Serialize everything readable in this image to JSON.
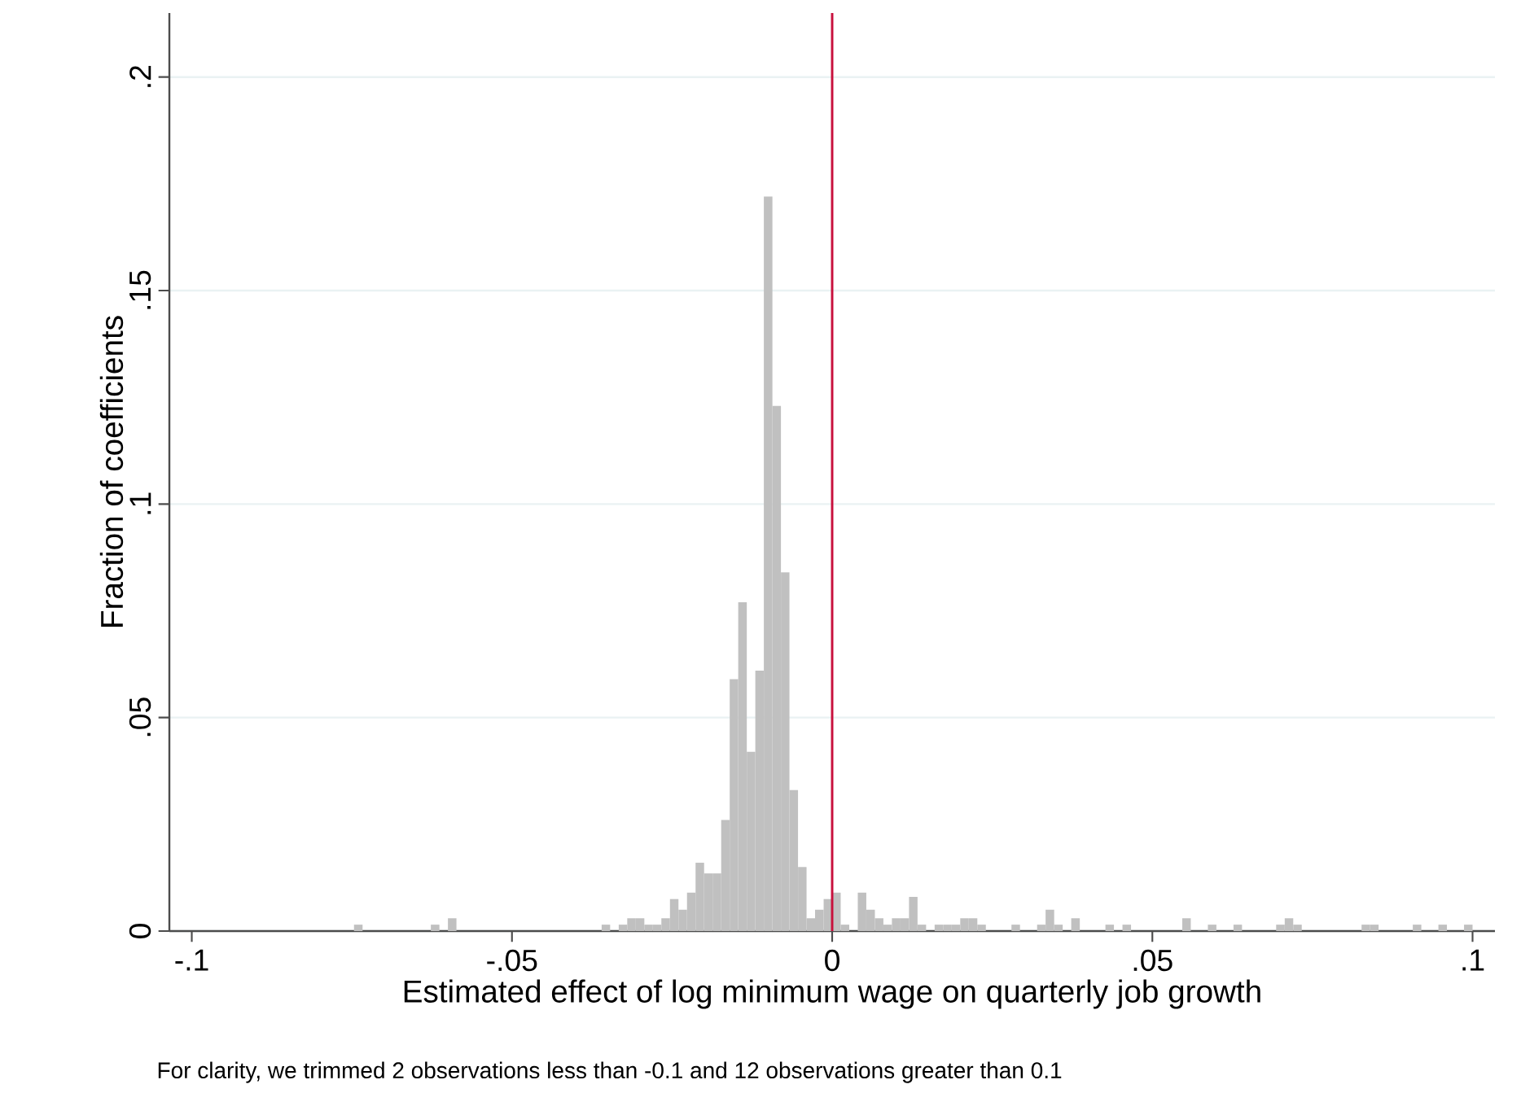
{
  "chart_data": {
    "type": "histogram",
    "xlabel": "Estimated effect of log minimum wage on quarterly job growth",
    "ylabel": "Fraction of coefficients",
    "annotations": [
      "For clarity, we trimmed 2 observations less than -0.1 and 12 observations greater than 0.1"
    ],
    "color": "#c0c0c0",
    "bins": [
      -0.1,
      -0.09867,
      -0.09733,
      -0.096,
      -0.09467,
      -0.09333,
      -0.092,
      -0.09067,
      -0.08933,
      -0.088,
      -0.08667,
      -0.08533,
      -0.084,
      -0.08267,
      -0.08133,
      -0.08,
      -0.07867,
      -0.07733,
      -0.076,
      -0.07467,
      -0.07333,
      -0.072,
      -0.07067,
      -0.06933,
      -0.068,
      -0.06667,
      -0.06533,
      -0.064,
      -0.06267,
      -0.06133,
      -0.06,
      -0.05867,
      -0.05733,
      -0.056,
      -0.05467,
      -0.05333,
      -0.052,
      -0.05067,
      -0.04933,
      -0.048,
      -0.04667,
      -0.04533,
      -0.044,
      -0.04267,
      -0.04133,
      -0.04,
      -0.03867,
      -0.03733,
      -0.036,
      -0.03467,
      -0.03333,
      -0.032,
      -0.03067,
      -0.02933,
      -0.028,
      -0.02667,
      -0.02533,
      -0.024,
      -0.02267,
      -0.02133,
      -0.02,
      -0.01867,
      -0.01733,
      -0.016,
      -0.01467,
      -0.01333,
      -0.012,
      -0.01067,
      -0.00933,
      -0.008,
      -0.00667,
      -0.00533,
      -0.004,
      -0.00267,
      -0.00133,
      0,
      0.00133,
      0.00267,
      0.004,
      0.00533,
      0.00667,
      0.008,
      0.00933,
      0.01067,
      0.012,
      0.01333,
      0.01467,
      0.016,
      0.01733,
      0.01867,
      0.02,
      0.02133,
      0.02267,
      0.024,
      0.02533,
      0.02667,
      0.028,
      0.02933,
      0.03067,
      0.032,
      0.03333,
      0.03467,
      0.036,
      0.03733,
      0.03867,
      0.04,
      0.04133,
      0.04267,
      0.044,
      0.04533,
      0.04667,
      0.048,
      0.04933,
      0.05067,
      0.052,
      0.05333,
      0.05467,
      0.056,
      0.05733,
      0.05867,
      0.06,
      0.06133,
      0.06267,
      0.064,
      0.06533,
      0.06667,
      0.068,
      0.06933,
      0.07067,
      0.072,
      0.07333,
      0.07467,
      0.076,
      0.07733,
      0.07867,
      0.08,
      0.08133,
      0.08267,
      0.084,
      0.08533,
      0.08667,
      0.088,
      0.08933,
      0.09067,
      0.092,
      0.09333,
      0.09467,
      0.096,
      0.09733,
      0.09867,
      0.1
    ],
    "values": [
      0,
      0,
      0,
      0,
      0,
      0,
      0,
      0,
      0,
      0,
      0,
      0,
      0,
      0,
      0,
      0,
      0,
      0,
      0,
      0.0015,
      0,
      0,
      0,
      0,
      0,
      0,
      0,
      0,
      0.0015,
      0,
      0.003,
      0,
      0,
      0,
      0,
      0,
      0,
      0,
      0,
      0,
      0,
      0,
      0,
      0,
      0,
      0,
      0,
      0,
      0.0015,
      0,
      0.0015,
      0.003,
      0.003,
      0.0015,
      0.0015,
      0.003,
      0.0075,
      0.005,
      0.009,
      0.016,
      0.0135,
      0.0135,
      0.026,
      0.059,
      0.077,
      0.042,
      0.061,
      0.172,
      0.123,
      0.084,
      0.033,
      0.015,
      0.003,
      0.005,
      0.0075,
      0.009,
      0.0015,
      0,
      0.009,
      0.005,
      0.003,
      0.0015,
      0.003,
      0.003,
      0.008,
      0.0015,
      0,
      0.0015,
      0.0015,
      0.0015,
      0.003,
      0.003,
      0.0015,
      0,
      0,
      0,
      0.0015,
      0,
      0,
      0.0015,
      0.005,
      0.0015,
      0,
      0.003,
      0,
      0,
      0,
      0.0015,
      0,
      0.0015,
      0,
      0,
      0,
      0,
      0,
      0,
      0.003,
      0,
      0,
      0.0015,
      0,
      0,
      0.0015,
      0,
      0,
      0,
      0,
      0.0015,
      0.003,
      0.0015,
      0,
      0,
      0,
      0,
      0,
      0,
      0,
      0.0015,
      0.0015,
      0,
      0,
      0,
      0,
      0.0015,
      0,
      0,
      0.0015,
      0,
      0,
      0.0015
    ],
    "xlim": [
      -0.1035,
      0.1035
    ],
    "ylim": [
      0,
      0.215
    ],
    "xticks": [
      {
        "value": -0.1,
        "label": "-.1"
      },
      {
        "value": -0.05,
        "label": "-.05"
      },
      0,
      {
        "value": 0.05,
        "label": ".05"
      },
      {
        "value": 0.1,
        "label": ".1"
      }
    ],
    "yticks": [
      0,
      {
        "value": 0.05,
        "label": ".05"
      },
      {
        "value": 0.1,
        "label": ".1"
      },
      {
        "value": 0.15,
        "label": ".15"
      },
      {
        "value": 0.2,
        "label": ".2"
      }
    ],
    "grid": "y",
    "ref_lines": [
      {
        "axis": "x",
        "value": 0,
        "color": "#c8103c"
      }
    ]
  }
}
